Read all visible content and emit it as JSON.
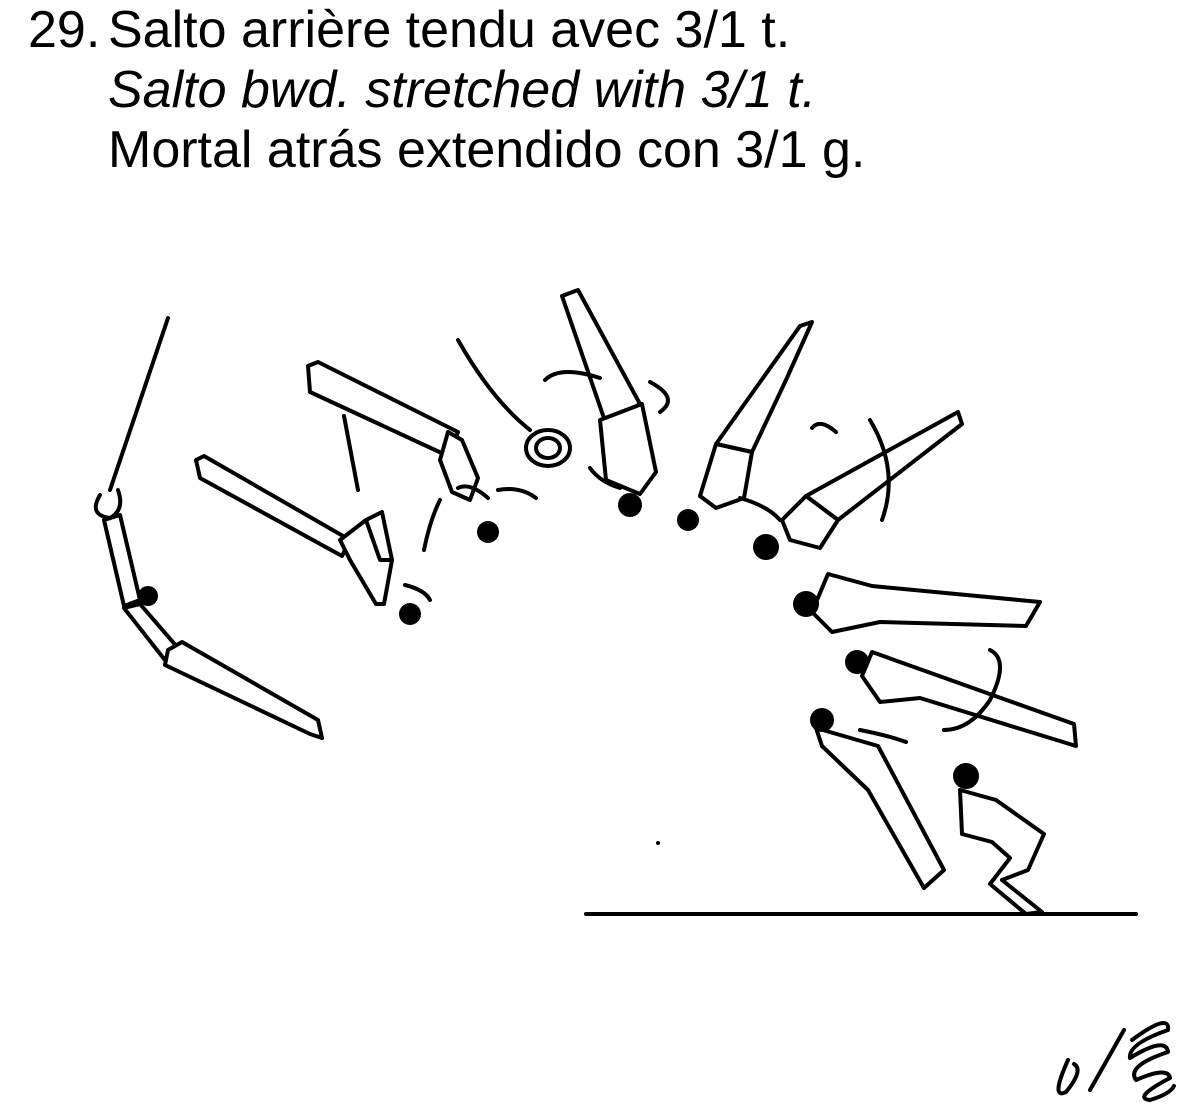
{
  "element": {
    "number": "29.",
    "name_fr": "Salto arrière tendu avec 3/1 t.",
    "name_en": "Salto bwd. stretched with 3/1 t.",
    "name_es": "Mortal atrás extendido con 3/1 g."
  },
  "figure": {
    "description_icon": "gymnast-salto-sequence",
    "signature_icon": "handwritten-signature"
  }
}
